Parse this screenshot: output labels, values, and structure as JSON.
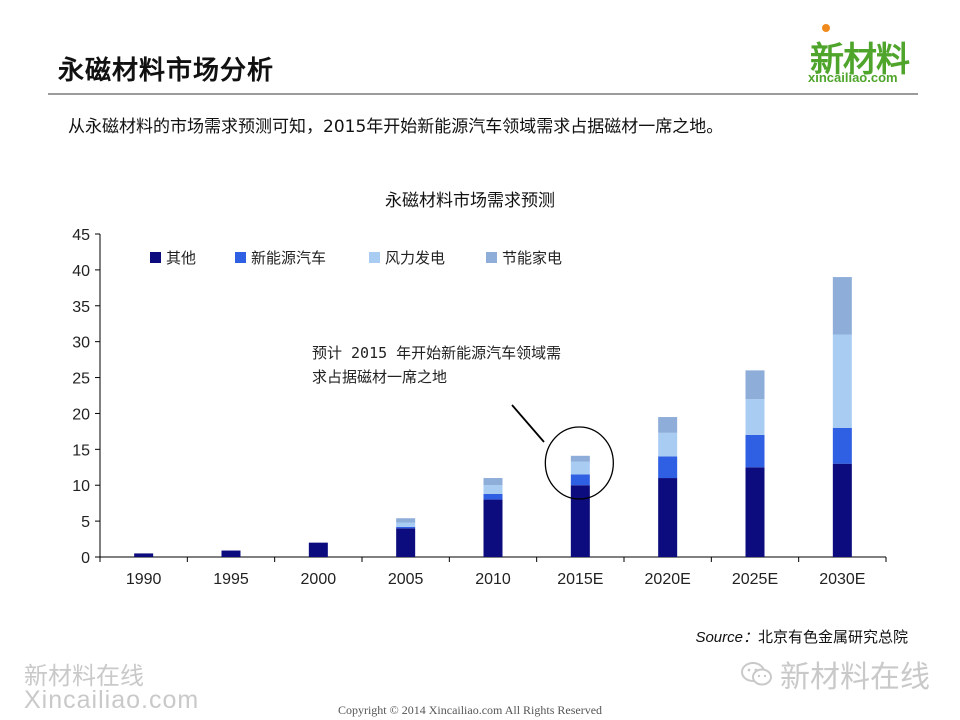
{
  "header": {
    "title": "永磁材料市场分析",
    "logo_cn": "新材料",
    "logo_en": "xincailiao.com"
  },
  "intro_text": "从永磁材料的市场需求预测可知，2015年开始新能源汽车领域需求占据磁材一席之地。",
  "chart_data": {
    "type": "bar",
    "stacked": true,
    "title": "永磁材料市场需求预测",
    "xlabel": "",
    "ylabel": "",
    "categories": [
      "1990",
      "1995",
      "2000",
      "2005",
      "2010",
      "2015E",
      "2020E",
      "2025E",
      "2030E"
    ],
    "series": [
      {
        "name": "其他",
        "color": "#0c0c7e",
        "values": [
          0.5,
          0.9,
          2.0,
          4.0,
          8.0,
          10.0,
          11.0,
          12.5,
          13.0
        ]
      },
      {
        "name": "新能源汽车",
        "color": "#2f5fe3",
        "values": [
          0,
          0,
          0,
          0.2,
          0.8,
          1.5,
          3.0,
          4.5,
          5.0
        ]
      },
      {
        "name": "风力发电",
        "color": "#a9ccf2",
        "values": [
          0,
          0,
          0,
          0.6,
          1.2,
          1.8,
          3.3,
          5.0,
          13.0
        ]
      },
      {
        "name": "节能家电",
        "color": "#8eadd8",
        "values": [
          0,
          0,
          0,
          0.6,
          1.0,
          0.8,
          2.2,
          4.0,
          8.0
        ]
      }
    ],
    "ylim": [
      0,
      45
    ],
    "yticks": [
      0,
      5,
      10,
      15,
      20,
      25,
      30,
      35,
      40,
      45
    ],
    "grid": false,
    "legend_position": "top-left",
    "annotation": {
      "line1": "预计 2015 年开始新能源汽车领域需",
      "line2": "求占据磁材一席之地",
      "target_category": "2015E"
    }
  },
  "source": {
    "label": "Source：",
    "text": "北京有色金属研究总院"
  },
  "watermarks": {
    "left_cn": "新材料在线",
    "left_en": "Xincailiao.com",
    "right": "新材料在线",
    "right_icon": "wechat-icon"
  },
  "footer": {
    "copyright": "Copyright © 2014   Xincailiao.com    All Rights Reserved"
  }
}
